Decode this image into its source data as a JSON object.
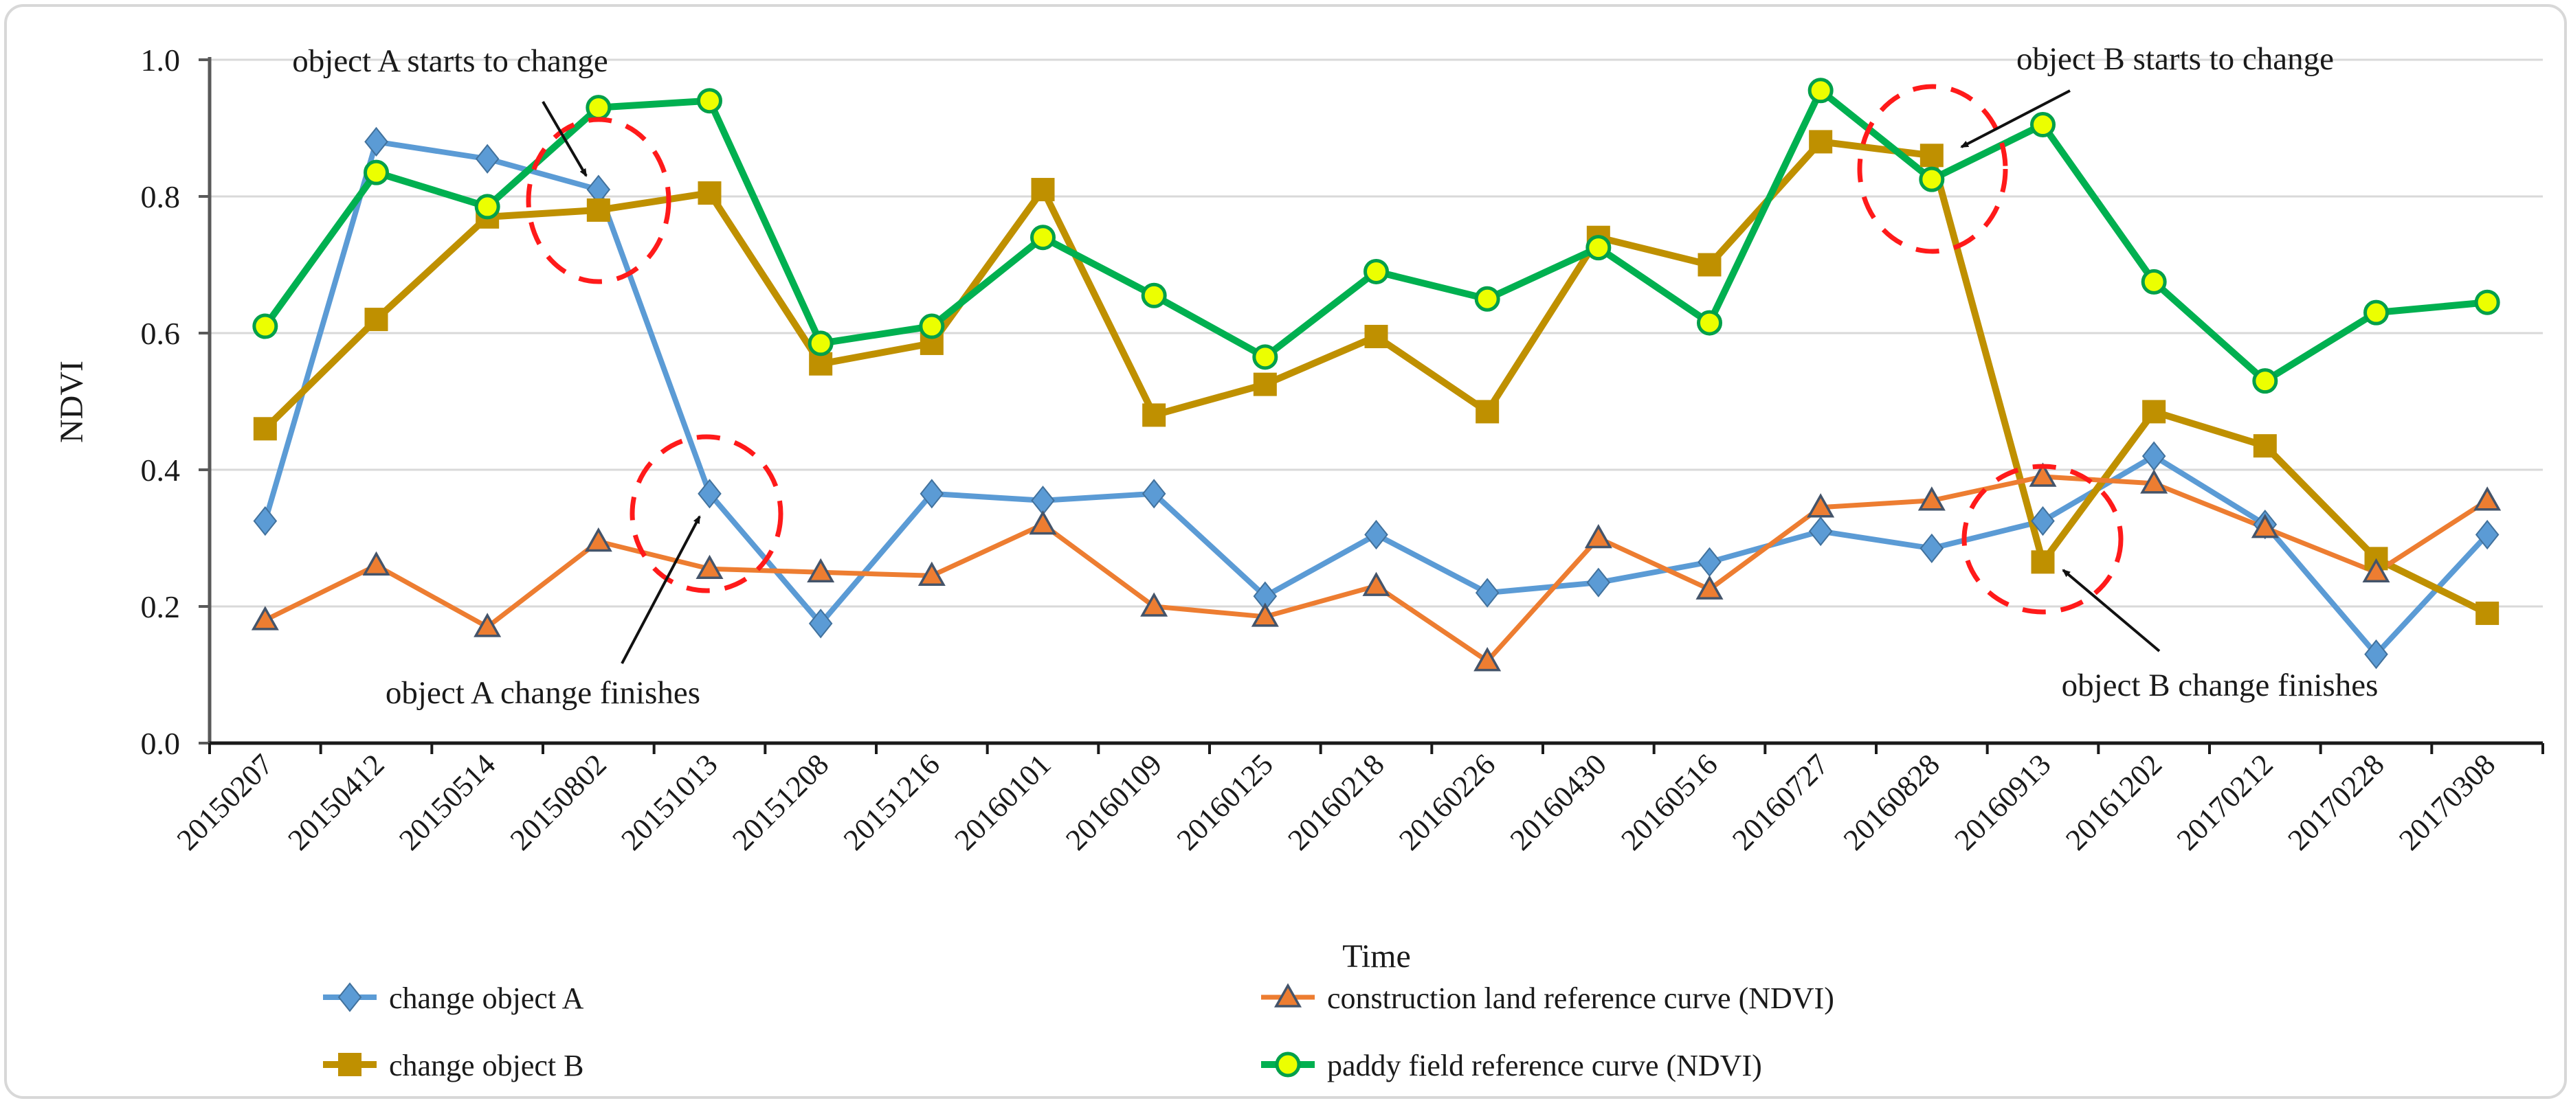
{
  "figure": {
    "background": "#ffffff",
    "border_color": "#d8d8d8"
  },
  "chart_data": {
    "type": "line",
    "title": "",
    "xlabel": "Time",
    "ylabel": "NDVI",
    "ylim": [
      0.0,
      1.0
    ],
    "ytick_labels": [
      "0.0",
      "0.2",
      "0.4",
      "0.6",
      "0.8",
      "1.0"
    ],
    "grid": "horizontal",
    "grid_color": "#d9d9d9",
    "legend_position": "bottom-two-columns",
    "categories": [
      "20150207",
      "20150412",
      "20150514",
      "20150802",
      "20151013",
      "20151208",
      "20151216",
      "20160101",
      "20160109",
      "20160125",
      "20160218",
      "20160226",
      "20160430",
      "20160516",
      "20160727",
      "20160828",
      "20160913",
      "20161202",
      "20170212",
      "20170228",
      "20170308"
    ],
    "series": [
      {
        "name": "change object A",
        "marker": "diamond",
        "color": "#5B9BD5",
        "marker_fill": "#5B9BD5",
        "marker_stroke": "#41719C",
        "values": [
          0.325,
          0.88,
          0.855,
          0.81,
          0.365,
          0.175,
          0.365,
          0.355,
          0.365,
          0.215,
          0.305,
          0.22,
          0.235,
          0.265,
          0.31,
          0.285,
          0.325,
          0.42,
          0.32,
          0.13,
          0.305
        ]
      },
      {
        "name": "change object B",
        "marker": "square",
        "color": "#BF9000",
        "marker_fill": "#BF9000",
        "marker_stroke": "#9A7400",
        "values": [
          0.46,
          0.62,
          0.77,
          0.78,
          0.805,
          0.555,
          0.585,
          0.81,
          0.48,
          0.525,
          0.595,
          0.485,
          0.74,
          0.7,
          0.88,
          0.86,
          0.265,
          0.485,
          0.435,
          0.27,
          0.19
        ]
      },
      {
        "name": "construction land reference curve (NDVI)",
        "marker": "triangle",
        "color": "#ED7D31",
        "marker_fill": "#ED7D31",
        "marker_stroke": "#44546A",
        "values": [
          0.18,
          0.26,
          0.17,
          0.295,
          0.255,
          0.25,
          0.245,
          0.32,
          0.2,
          0.185,
          0.23,
          0.12,
          0.3,
          0.225,
          0.345,
          0.355,
          0.39,
          0.38,
          0.315,
          0.25,
          0.355
        ]
      },
      {
        "name": "paddy field reference curve (NDVI)",
        "marker": "circle",
        "color": "#00B050",
        "marker_fill": "#ECFF00",
        "marker_stroke": "#00A04A",
        "values": [
          0.61,
          0.835,
          0.785,
          0.93,
          0.94,
          0.585,
          0.61,
          0.74,
          0.655,
          0.565,
          0.69,
          0.65,
          0.725,
          0.615,
          0.955,
          0.825,
          0.905,
          0.675,
          0.53,
          0.63,
          0.645
        ]
      }
    ],
    "annotations": [
      {
        "text": "object A starts to change",
        "target_category": "20150802",
        "target_series": "change object A"
      },
      {
        "text": "object A change finishes",
        "target_category": "20151013",
        "target_series": "change object A"
      },
      {
        "text": "object B starts to change",
        "target_category": "20160828",
        "target_series": "change object B"
      },
      {
        "text": "object B change finishes",
        "target_category": "20160913",
        "target_series": "change object B"
      }
    ],
    "annotation_color": "#ff1a1a"
  }
}
